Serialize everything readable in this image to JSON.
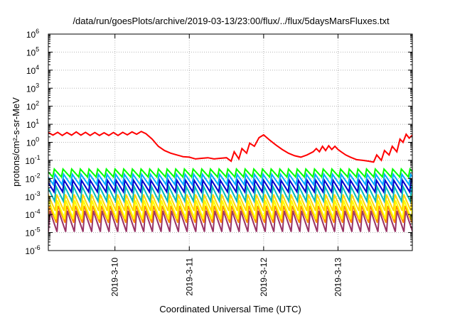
{
  "chart_data": {
    "type": "line",
    "title": "/data/run/goesPlots/archive/2019-03-13/23:00/flux/../flux/5daysMarsFluxes.txt",
    "xlabel": "Coordinated Universal Time (UTC)",
    "ylabel": "protons/cm²-s-sr-MeV",
    "ylim": [
      1e-06,
      1000000.0
    ],
    "yscale": "log",
    "xlim": [
      "2019-03-09T02:30",
      "2019-03-14T00:00"
    ],
    "grid": true,
    "legend": "none",
    "y_ticks": [
      {
        "base": "10",
        "exp": "-6"
      },
      {
        "base": "10",
        "exp": "-5"
      },
      {
        "base": "10",
        "exp": "-4"
      },
      {
        "base": "10",
        "exp": "-3"
      },
      {
        "base": "10",
        "exp": "-2"
      },
      {
        "base": "10",
        "exp": "-1"
      },
      {
        "base": "10",
        "exp": "0"
      },
      {
        "base": "10",
        "exp": "1"
      },
      {
        "base": "10",
        "exp": "2"
      },
      {
        "base": "10",
        "exp": "3"
      },
      {
        "base": "10",
        "exp": "4"
      },
      {
        "base": "10",
        "exp": "5"
      },
      {
        "base": "10",
        "exp": "6"
      }
    ],
    "x_ticks": [
      "2019-3-10",
      "2019-3-11",
      "2019-3-12",
      "2019-3-13"
    ],
    "sawtooth_period_hours": 2.8,
    "series": [
      {
        "color": "#ff0000",
        "sawtooth": false,
        "x": [
          "2019-03-09T02:30",
          "2019-03-09T04:00",
          "2019-03-09T05:30",
          "2019-03-09T07:00",
          "2019-03-09T08:30",
          "2019-03-09T10:00",
          "2019-03-09T11:30",
          "2019-03-09T13:00",
          "2019-03-09T14:30",
          "2019-03-09T16:00",
          "2019-03-09T17:30",
          "2019-03-09T19:00",
          "2019-03-09T20:30",
          "2019-03-09T22:00",
          "2019-03-09T23:30",
          "2019-03-10T01:00",
          "2019-03-10T02:30",
          "2019-03-10T04:00",
          "2019-03-10T05:30",
          "2019-03-10T07:00",
          "2019-03-10T08:30",
          "2019-03-10T10:00",
          "2019-03-10T12:00",
          "2019-03-10T14:00",
          "2019-03-10T16:00",
          "2019-03-10T18:00",
          "2019-03-10T20:00",
          "2019-03-10T22:00",
          "2019-03-11T00:00",
          "2019-03-11T02:00",
          "2019-03-11T04:00",
          "2019-03-11T06:00",
          "2019-03-11T08:00",
          "2019-03-11T10:00",
          "2019-03-11T12:00",
          "2019-03-11T13:30",
          "2019-03-11T14:30",
          "2019-03-11T16:00",
          "2019-03-11T17:00",
          "2019-03-11T18:30",
          "2019-03-11T19:30",
          "2019-03-11T21:00",
          "2019-03-11T22:30",
          "2019-03-12T00:00",
          "2019-03-12T02:00",
          "2019-03-12T04:00",
          "2019-03-12T06:00",
          "2019-03-12T08:00",
          "2019-03-12T10:00",
          "2019-03-12T12:00",
          "2019-03-12T14:00",
          "2019-03-12T16:00",
          "2019-03-12T17:00",
          "2019-03-12T18:00",
          "2019-03-12T19:00",
          "2019-03-12T20:00",
          "2019-03-12T21:00",
          "2019-03-12T22:00",
          "2019-03-12T23:00",
          "2019-03-13T00:00",
          "2019-03-13T01:00",
          "2019-03-13T02:30",
          "2019-03-13T04:00",
          "2019-03-13T06:00",
          "2019-03-13T08:00",
          "2019-03-13T10:00",
          "2019-03-13T11:30",
          "2019-03-13T12:30",
          "2019-03-13T14:00",
          "2019-03-13T15:00",
          "2019-03-13T16:30",
          "2019-03-13T17:30",
          "2019-03-13T19:00",
          "2019-03-13T20:00",
          "2019-03-13T21:00",
          "2019-03-13T22:00",
          "2019-03-13T23:00",
          "2019-03-14T00:00"
        ],
        "y": [
          3.5,
          2.5,
          3.6,
          2.4,
          3.5,
          2.5,
          3.8,
          2.5,
          3.6,
          2.4,
          3.5,
          2.4,
          3.4,
          2.4,
          3.5,
          2.4,
          3.6,
          2.6,
          3.8,
          2.8,
          4.0,
          3.0,
          1.5,
          0.6,
          0.35,
          0.25,
          0.2,
          0.16,
          0.15,
          0.12,
          0.13,
          0.14,
          0.12,
          0.13,
          0.14,
          0.09,
          0.3,
          0.12,
          0.45,
          0.25,
          0.9,
          0.6,
          1.8,
          2.6,
          1.3,
          0.7,
          0.4,
          0.25,
          0.18,
          0.15,
          0.2,
          0.3,
          0.45,
          0.3,
          0.6,
          0.35,
          0.65,
          0.4,
          0.6,
          0.4,
          0.3,
          0.2,
          0.15,
          0.11,
          0.1,
          0.09,
          0.08,
          0.2,
          0.1,
          0.35,
          0.2,
          0.6,
          0.3,
          1.5,
          1.0,
          2.8,
          1.7,
          2.5
        ]
      },
      {
        "color": "#00ff00",
        "sawtooth": true,
        "peak": 0.033,
        "trough": 0.012
      },
      {
        "color": "#00aaff",
        "sawtooth": true,
        "peak": 0.017,
        "trough": 0.0045
      },
      {
        "color": "#0000cc",
        "sawtooth": true,
        "peak": 0.0078,
        "trough": 0.0018
      },
      {
        "color": "#00bbbb",
        "sawtooth": true,
        "peak": 0.0035,
        "trough": 0.00055
      },
      {
        "color": "#ffd700",
        "sawtooth": true,
        "peak": 0.0013,
        "trough": 0.00016
      },
      {
        "color": "#ffff00",
        "sawtooth": true,
        "peak": 0.0006,
        "trough": 5.5e-05
      },
      {
        "color": "#ff8c00",
        "sawtooth": true,
        "peak": 0.0003,
        "trough": 3.5e-05
      },
      {
        "color": "#993366",
        "sawtooth": true,
        "peak": 0.00016,
        "trough": 1.1e-05
      }
    ]
  }
}
